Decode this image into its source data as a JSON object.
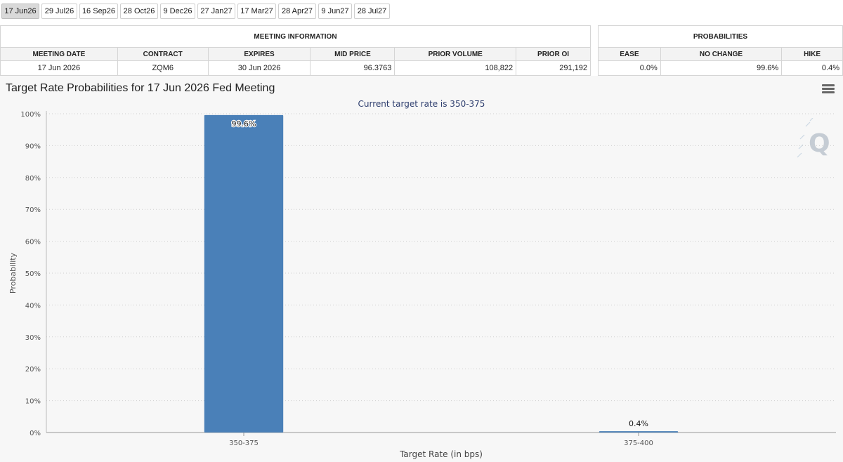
{
  "tabs": [
    "17 Jun26",
    "29 Jul26",
    "16 Sep26",
    "28 Oct26",
    "9 Dec26",
    "27 Jan27",
    "17 Mar27",
    "28 Apr27",
    "9 Jun27",
    "28 Jul27"
  ],
  "active_tab": 0,
  "meeting_info": {
    "group_label": "MEETING INFORMATION",
    "headers": [
      "MEETING DATE",
      "CONTRACT",
      "EXPIRES",
      "MID PRICE",
      "PRIOR VOLUME",
      "PRIOR OI"
    ],
    "row": [
      "17 Jun 2026",
      "ZQM6",
      "30 Jun 2026",
      "96.3763",
      "108,822",
      "291,192"
    ]
  },
  "probabilities": {
    "group_label": "PROBABILITIES",
    "headers": [
      "EASE",
      "NO CHANGE",
      "HIKE"
    ],
    "row": [
      "0.0%",
      "99.6%",
      "0.4%"
    ]
  },
  "colors": {
    "bar": "#4a80b8",
    "panel_bg": "#f7f7f7",
    "subtitle": "#2e3e6e"
  },
  "icons": {
    "menu": "hamburger-menu-icon",
    "logo": "q-logo-icon"
  },
  "chart_data": {
    "type": "bar",
    "title": "Target Rate Probabilities for 17 Jun 2026 Fed Meeting",
    "subtitle": "Current target rate is 350-375",
    "categories": [
      "350-375",
      "375-400"
    ],
    "values": [
      99.6,
      0.4
    ],
    "data_labels": [
      "99.6%",
      "0.4%"
    ],
    "xlabel": "Target Rate (in bps)",
    "ylabel": "Probability",
    "ylim": [
      0,
      100
    ],
    "yticks": [
      0,
      10,
      20,
      30,
      40,
      50,
      60,
      70,
      80,
      90,
      100
    ],
    "ytick_labels": [
      "0%",
      "10%",
      "20%",
      "30%",
      "40%",
      "50%",
      "60%",
      "70%",
      "80%",
      "90%",
      "100%"
    ],
    "grid": true
  }
}
